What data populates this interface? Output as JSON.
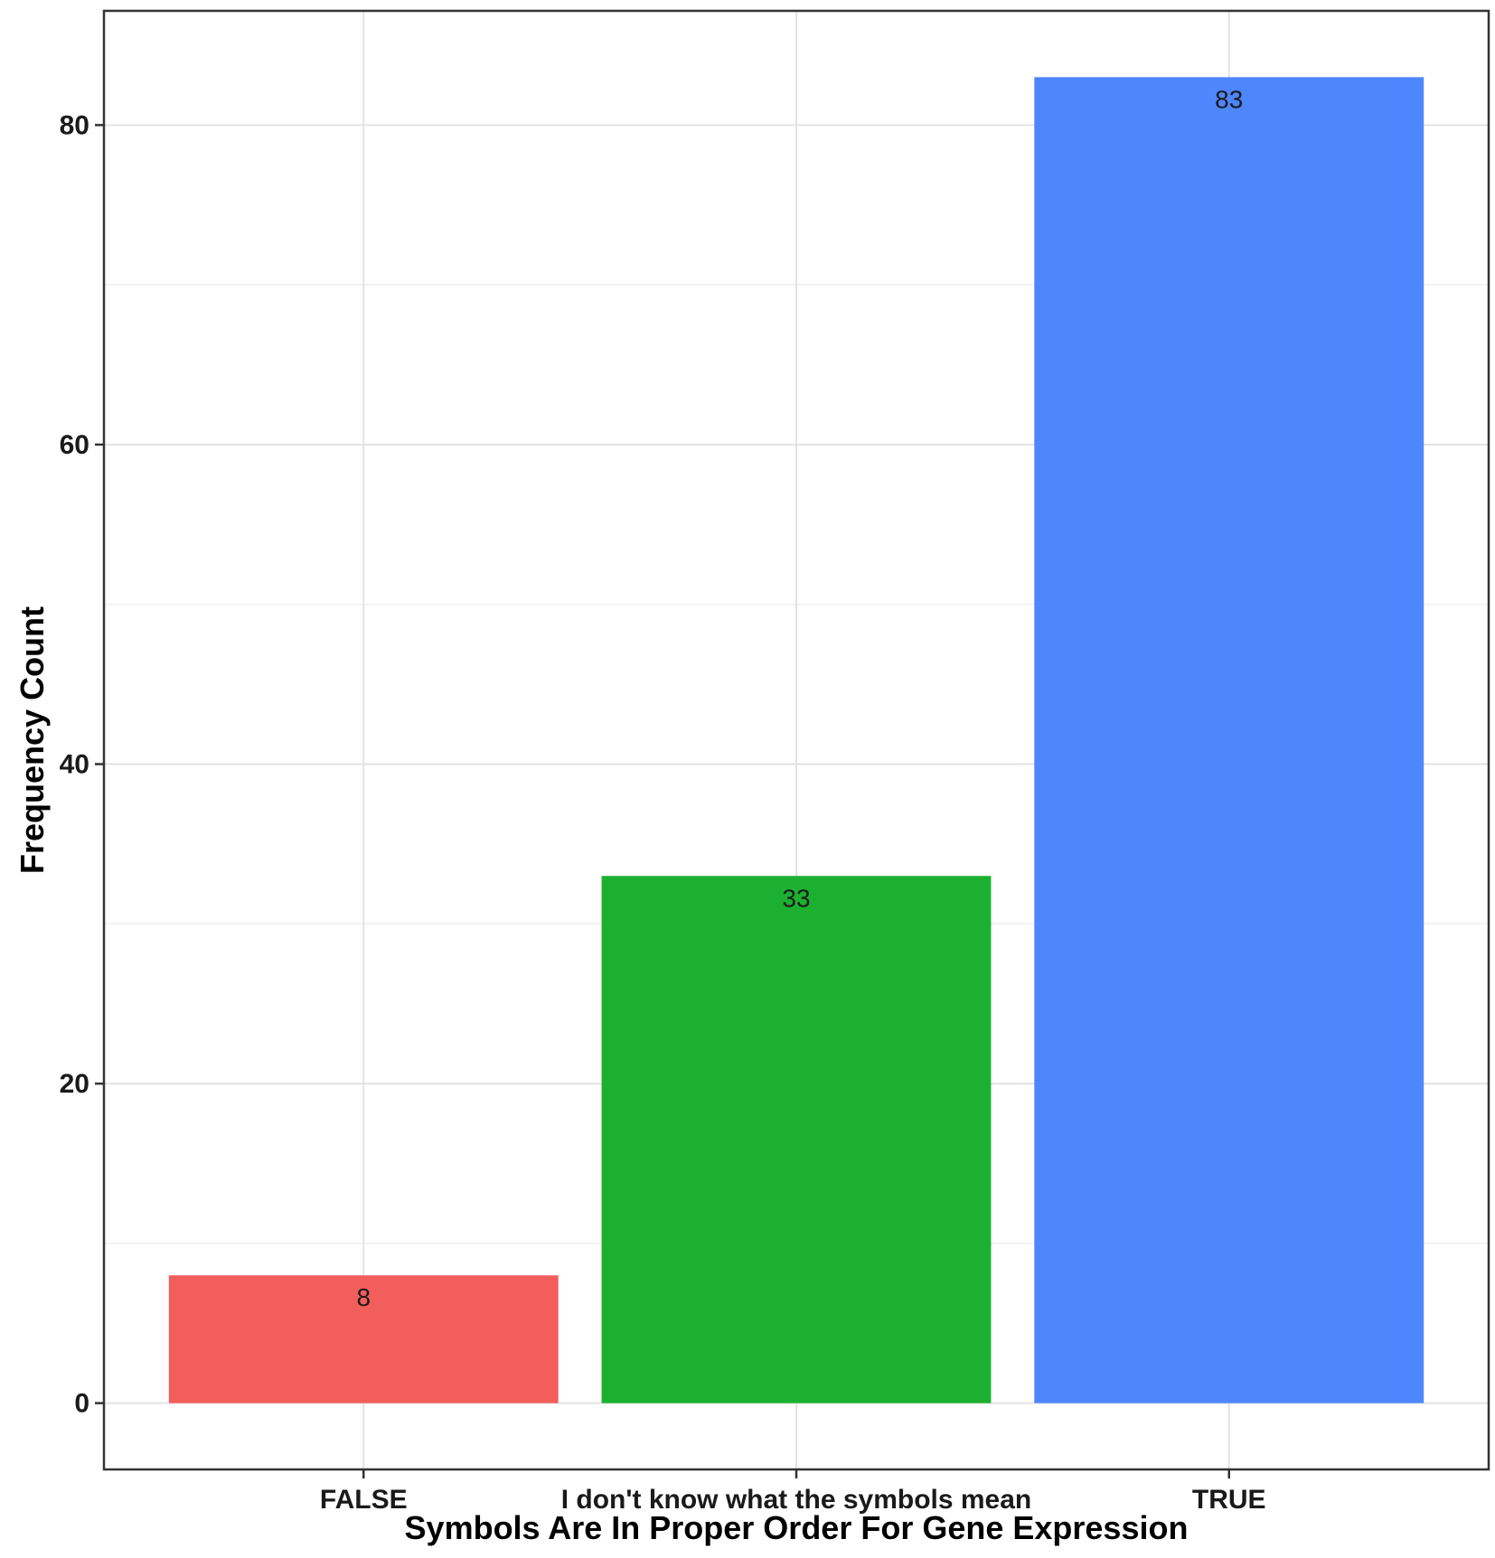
{
  "chart_data": {
    "type": "bar",
    "categories": [
      "FALSE",
      "I don't know what the symbols mean",
      "TRUE"
    ],
    "values": [
      8,
      33,
      83
    ],
    "data_labels": [
      "8",
      "33",
      "83"
    ],
    "colors": [
      "#F15E5B",
      "#1BB02F",
      "#4E86FD"
    ],
    "xlabel": "Symbols Are In Proper Order For Gene Expression",
    "ylabel": "Frequency Count",
    "ylim": [
      -4.15,
      87.15
    ],
    "yticks": [
      0,
      20,
      40,
      60,
      80
    ],
    "ytick_labels": [
      "0",
      "20",
      "40",
      "60",
      "80"
    ],
    "grid": true,
    "legend": "none"
  }
}
